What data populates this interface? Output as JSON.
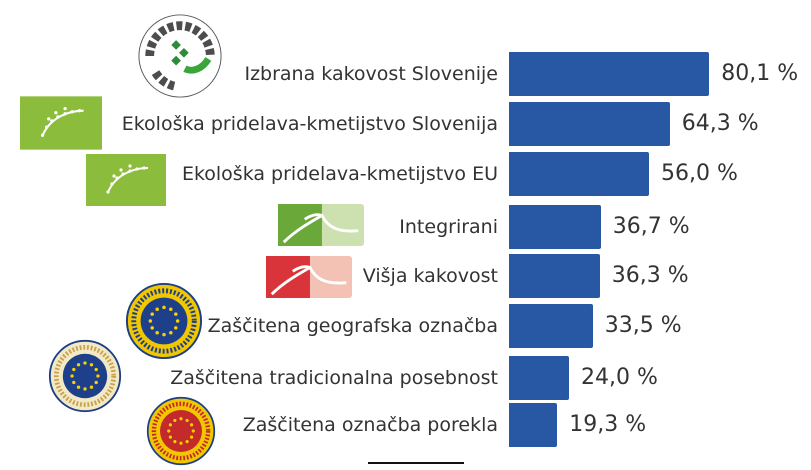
{
  "chart_data": {
    "type": "bar",
    "orientation": "horizontal",
    "categories": [
      "Izbrana kakovost Slovenije",
      "Ekološka pridelava-kmetijstvo Slovenija",
      "Ekološka pridelava-kmetijstvo EU",
      "Integrirani",
      "Višja kakovost",
      "Zaščitena geografska označba",
      "Zaščitena tradicionalna posebnost",
      "Zaščitena označba porekla"
    ],
    "values": [
      80.1,
      64.3,
      56.0,
      36.7,
      36.3,
      33.5,
      24.0,
      19.3
    ],
    "value_labels": [
      "80,1 %",
      "64,3 %",
      "56,0 %",
      "36,7 %",
      "36,3 %",
      "33,5 %",
      "24,0 %",
      "19,3 %"
    ],
    "logos": [
      "izbrana-kakovost-slovenije-logo",
      "eu-organic-leaf-logo",
      "eu-organic-leaf-logo",
      "integrirani-logo",
      "visja-kakovost-logo",
      "pgi-eu-seal-logo",
      "tsg-eu-seal-logo",
      "pdo-eu-seal-logo"
    ],
    "xlim": [
      0,
      100
    ],
    "bar_color": "#2857a3",
    "grid": false,
    "legend": "none",
    "logo_text": "IZBRANA KAKOVOST Slovenija"
  }
}
